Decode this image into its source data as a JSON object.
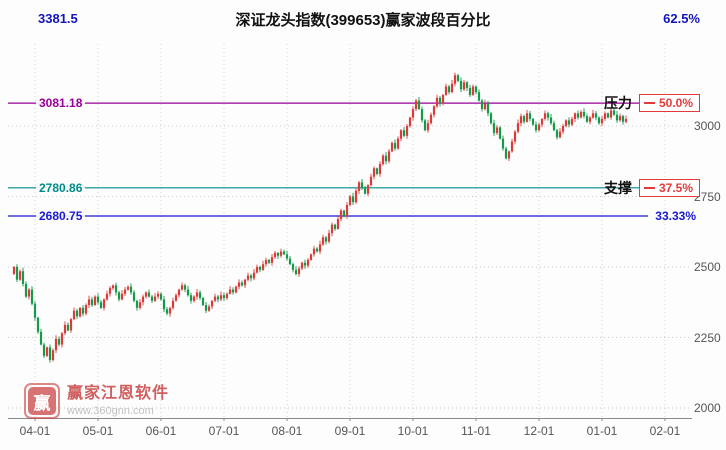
{
  "header": {
    "title": "深证龙头指数(399653)赢家波段百分比",
    "top_left_value": "3381.5",
    "top_right_value": "62.5%"
  },
  "levels": {
    "resistance": {
      "price": "3081.18",
      "value": 3081.18,
      "label": "压力",
      "pct": "50.0%",
      "color": "#990099"
    },
    "support": {
      "price": "2780.86",
      "value": 2780.86,
      "label": "支撑",
      "pct": "37.5%",
      "color": "#008b8b"
    },
    "lower": {
      "price": "2680.75",
      "value": 2680.75,
      "pct": "33.33%",
      "color": "#1a1acd"
    }
  },
  "axes": {
    "y_ticks": [
      3000,
      2750,
      2500,
      2250,
      2000
    ],
    "x_ticks": [
      "04-01",
      "05-01",
      "06-01",
      "07-01",
      "08-01",
      "09-01",
      "10-01",
      "11-01",
      "12-01",
      "01-01",
      "02-01"
    ]
  },
  "colors": {
    "up": "#dc3b3b",
    "down": "#159a4b",
    "grid": "#c9c9c9",
    "vgrid": "#d2d2d2",
    "axis": "#8a8a8a"
  },
  "watermark": {
    "brand": "赢家江恩软件",
    "url": "www.360gnn.com",
    "logo_char": "赢"
  },
  "chart_data": {
    "type": "candlestick",
    "title": "深证龙头指数(399653)赢家波段百分比",
    "symbol": "399653",
    "ylim": [
      2000,
      3200
    ],
    "y_ticks": [
      3000,
      2750,
      2500,
      2250,
      2000
    ],
    "x_ticks": [
      "04-01",
      "05-01",
      "06-01",
      "07-01",
      "08-01",
      "09-01",
      "10-01",
      "11-01",
      "12-01",
      "01-01",
      "02-01"
    ],
    "band_levels": [
      {
        "price": 3381.5,
        "pct": "62.5%"
      },
      {
        "price": 3081.18,
        "pct": "50.0%",
        "label": "压力"
      },
      {
        "price": 2780.86,
        "pct": "37.5%",
        "label": "支撑"
      },
      {
        "price": 2680.75,
        "pct": "33.33%"
      }
    ],
    "closes": [
      2500,
      2455,
      2485,
      2440,
      2395,
      2420,
      2370,
      2320,
      2270,
      2225,
      2185,
      2215,
      2170,
      2205,
      2245,
      2225,
      2265,
      2295,
      2275,
      2315,
      2345,
      2325,
      2355,
      2335,
      2365,
      2385,
      2365,
      2395,
      2375,
      2355,
      2385,
      2405,
      2425,
      2435,
      2410,
      2385,
      2405,
      2420,
      2430,
      2410,
      2380,
      2355,
      2375,
      2395,
      2410,
      2395,
      2380,
      2395,
      2405,
      2385,
      2350,
      2335,
      2355,
      2380,
      2400,
      2420,
      2435,
      2420,
      2400,
      2380,
      2395,
      2410,
      2390,
      2365,
      2345,
      2360,
      2380,
      2395,
      2385,
      2400,
      2390,
      2405,
      2420,
      2410,
      2430,
      2445,
      2435,
      2455,
      2470,
      2460,
      2480,
      2500,
      2490,
      2510,
      2525,
      2515,
      2535,
      2550,
      2540,
      2555,
      2545,
      2530,
      2510,
      2490,
      2475,
      2495,
      2515,
      2505,
      2525,
      2545,
      2565,
      2555,
      2580,
      2605,
      2590,
      2620,
      2650,
      2635,
      2670,
      2700,
      2680,
      2720,
      2750,
      2730,
      2770,
      2800,
      2780,
      2760,
      2790,
      2820,
      2850,
      2830,
      2865,
      2895,
      2875,
      2910,
      2940,
      2920,
      2955,
      2985,
      2965,
      3000,
      3030,
      3060,
      3090,
      3060,
      3020,
      2985,
      3010,
      3040,
      3070,
      3100,
      3080,
      3110,
      3140,
      3120,
      3150,
      3180,
      3160,
      3130,
      3155,
      3135,
      3110,
      3140,
      3120,
      3090,
      3060,
      3080,
      3045,
      3010,
      2975,
      2995,
      2955,
      2920,
      2885,
      2910,
      2945,
      2980,
      3010,
      3035,
      3015,
      3045,
      3025,
      3005,
      2985,
      3005,
      3025,
      3045,
      3030,
      3010,
      2985,
      2960,
      2980,
      3000,
      3020,
      3005,
      3025,
      3045,
      3030,
      3050,
      3035,
      3015,
      3030,
      3045,
      3030,
      3010,
      3025,
      3045,
      3030,
      3055,
      3040,
      3020,
      3035,
      3015,
      3025
    ]
  }
}
